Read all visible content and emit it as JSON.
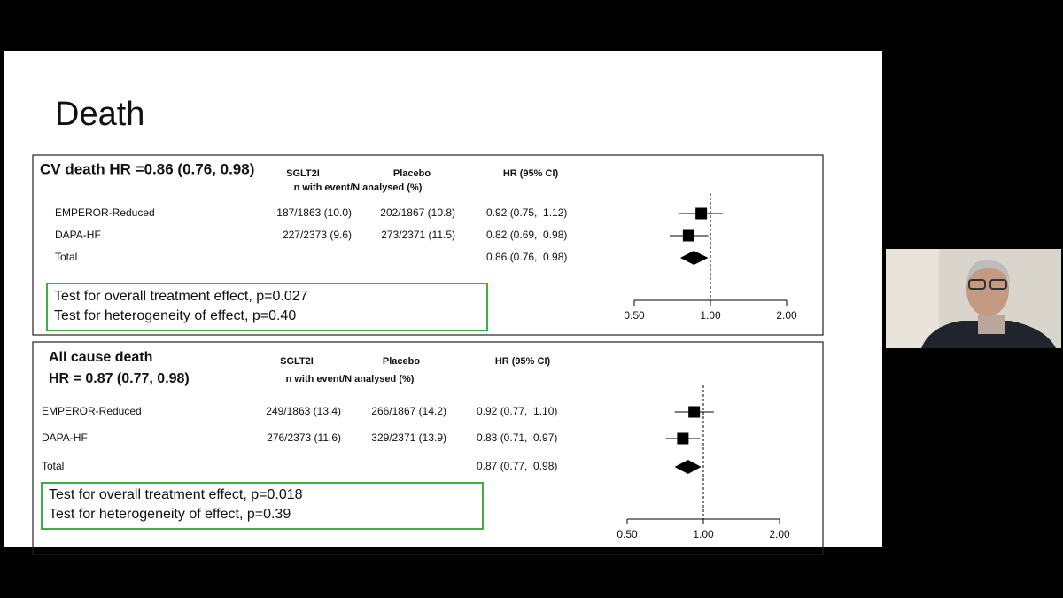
{
  "slide": {
    "title": "Death"
  },
  "chart_data": [
    {
      "type": "forest",
      "title": [
        "CV death HR =0.86 (0.76, 0.98)"
      ],
      "columns": [
        "SGLT2I",
        "Placebo",
        "HR (95% CI)"
      ],
      "subheader": "n with event/N analysed (%)",
      "categories": [
        "EMPEROR-Reduced",
        "DAPA-HF",
        "Total"
      ],
      "sglt2i": [
        "187/1863 (10.0)",
        "227/2373 (9.6)",
        null
      ],
      "placebo": [
        "202/1867 (10.8)",
        "273/2371 (11.5)",
        null
      ],
      "values": [
        0.92,
        0.82,
        0.86
      ],
      "lower": [
        0.75,
        0.69,
        0.76
      ],
      "upper": [
        1.12,
        0.98,
        0.98
      ],
      "value_labels": [
        "0.92 (0.75,  1.12)",
        "0.82 (0.69,  0.98)",
        "0.86 (0.76,  0.98)"
      ],
      "xscale": "log",
      "xlim": [
        0.5,
        2
      ],
      "xticks": [
        {
          "value": 0.5,
          "label": "0.50"
        },
        {
          "value": 1,
          "label": "1.00"
        },
        {
          "value": 2,
          "label": "2.00"
        }
      ],
      "reference_line": 1,
      "annotations": [
        "Test for overall treatment effect, p=0.027",
        "Test for heterogeneity of effect, p=0.40"
      ]
    },
    {
      "type": "forest",
      "title": [
        "All cause death",
        "HR = 0.87 (0.77, 0.98)"
      ],
      "columns": [
        "SGLT2I",
        "Placebo",
        "HR (95% CI)"
      ],
      "subheader": "n with event/N analysed (%)",
      "categories": [
        "EMPEROR-Reduced",
        "DAPA-HF",
        "Total"
      ],
      "sglt2i": [
        "249/1863 (13.4)",
        "276/2373 (11.6)",
        null
      ],
      "placebo": [
        "266/1867 (14.2)",
        "329/2371 (13.9)",
        null
      ],
      "values": [
        0.92,
        0.83,
        0.87
      ],
      "lower": [
        0.77,
        0.71,
        0.77
      ],
      "upper": [
        1.1,
        0.97,
        0.98
      ],
      "value_labels": [
        "0.92 (0.77,  1.10)",
        "0.83 (0.71,  0.97)",
        "0.87 (0.77,  0.98)"
      ],
      "xscale": "log",
      "xlim": [
        0.5,
        2
      ],
      "xticks": [
        {
          "value": 0.5,
          "label": "0.50"
        },
        {
          "value": 1,
          "label": "1.00"
        },
        {
          "value": 2,
          "label": "2.00"
        }
      ],
      "reference_line": 1,
      "annotations": [
        "Test for overall treatment effect, p=0.018",
        "Test for heterogeneity of effect, p=0.39"
      ]
    }
  ]
}
